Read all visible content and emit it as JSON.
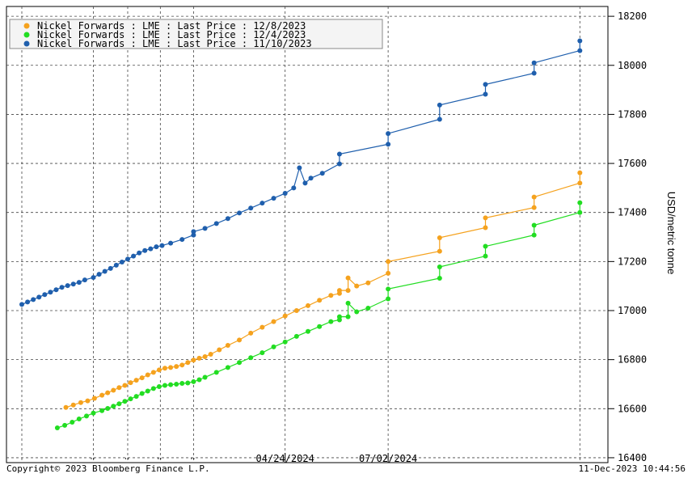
{
  "chart_data": {
    "type": "line",
    "ylabel": "USD/metric tonne",
    "ylim": [
      16380,
      18240
    ],
    "yticks": [
      16400,
      16600,
      16800,
      17000,
      17200,
      17400,
      17600,
      17800,
      18000,
      18200
    ],
    "ytick_labels": [
      "16400",
      "16600",
      "16800",
      "17000",
      "17200",
      "17400",
      "17600",
      "17800",
      "18000",
      "18200"
    ],
    "xlim": [
      0,
      100
    ],
    "x_tick_labels": [
      {
        "x": 46,
        "label": "04/24/2024"
      },
      {
        "x": 64,
        "label": "07/02/2024"
      }
    ],
    "x_dot_ticks": [
      12.5,
      18.5,
      24.2,
      30
    ],
    "x_vgrid": [
      0,
      12.5,
      18.5,
      24.2,
      30,
      46,
      64,
      97.5
    ],
    "grid": true,
    "legend_placement": "top-left",
    "copyright": "Copyright© 2023 Bloomberg Finance L.P.",
    "timestamp": "11-Dec-2023 10:44:56",
    "series": [
      {
        "name": "Nickel Forwards : LME : Last Price : 12/8/2023",
        "color": "#f5a21e",
        "x": [
          7.7,
          9,
          10.3,
          11.5,
          12.7,
          14,
          15,
          16,
          17,
          18,
          19,
          20,
          21,
          22,
          23,
          24,
          25,
          26,
          27,
          28,
          29,
          30,
          31,
          32,
          33,
          34.5,
          36,
          38,
          40,
          42,
          44,
          46,
          48,
          50,
          52,
          54,
          55.5,
          55.5,
          57,
          57,
          58.5,
          60.5,
          64,
          64,
          73,
          73,
          81,
          81,
          89.5,
          89.5,
          97.5,
          97.5
        ],
        "y": [
          16605,
          16615,
          16625,
          16632,
          16642,
          16655,
          16665,
          16675,
          16686,
          16695,
          16706,
          16716,
          16726,
          16738,
          16748,
          16758,
          16765,
          16768,
          16772,
          16778,
          16788,
          16798,
          16806,
          16812,
          16822,
          16840,
          16858,
          16880,
          16908,
          16932,
          16955,
          16978,
          17000,
          17020,
          17042,
          17062,
          17070,
          17082,
          17082,
          17133,
          17100,
          17113,
          17152,
          17200,
          17242,
          17297,
          17338,
          17378,
          17420,
          17463,
          17520,
          17562
        ]
      },
      {
        "name": "Nickel Forwards : LME : Last Price : 12/4/2023",
        "color": "#22dd22",
        "x": [
          6.2,
          7.5,
          8.8,
          10,
          11.3,
          12.5,
          14,
          15,
          16,
          17,
          18,
          19,
          20,
          21,
          22,
          23,
          24,
          25,
          26,
          27,
          28,
          29,
          30,
          31,
          32,
          34,
          36,
          38,
          40,
          42,
          44,
          46,
          48,
          50,
          52,
          54,
          55.5,
          55.5,
          57,
          57,
          58.5,
          60.5,
          64,
          64,
          73,
          73,
          81,
          81,
          89.5,
          89.5,
          97.5,
          97.5
        ],
        "y": [
          16522,
          16532,
          16545,
          16558,
          16570,
          16582,
          16592,
          16601,
          16610,
          16620,
          16630,
          16640,
          16650,
          16662,
          16672,
          16682,
          16690,
          16695,
          16698,
          16700,
          16703,
          16705,
          16710,
          16718,
          16728,
          16748,
          16768,
          16788,
          16808,
          16828,
          16852,
          16872,
          16895,
          16915,
          16935,
          16955,
          16962,
          16975,
          16975,
          17030,
          16995,
          17010,
          17048,
          17088,
          17132,
          17178,
          17222,
          17262,
          17308,
          17348,
          17400,
          17440
        ]
      },
      {
        "name": "Nickel Forwards : LME : Last Price : 11/10/2023",
        "color": "#1f5fad",
        "x": [
          0,
          1,
          2,
          3,
          4,
          5,
          6,
          7,
          8,
          9,
          10,
          11,
          12.5,
          13.5,
          14.5,
          15.5,
          16.5,
          17.5,
          18.5,
          19.5,
          20.5,
          21.5,
          22.5,
          23.5,
          24.5,
          26,
          28,
          30,
          30,
          32,
          34,
          36,
          38,
          40,
          42,
          44,
          46,
          47.5,
          48.5,
          49.5,
          50.5,
          52.5,
          55.5,
          55.5,
          64,
          64,
          73,
          73,
          81,
          81,
          89.5,
          89.5,
          97.5,
          97.5
        ],
        "y": [
          17025,
          17035,
          17045,
          17055,
          17065,
          17075,
          17085,
          17095,
          17102,
          17108,
          17115,
          17125,
          17135,
          17148,
          17160,
          17172,
          17185,
          17198,
          17210,
          17222,
          17235,
          17245,
          17252,
          17260,
          17265,
          17275,
          17290,
          17308,
          17322,
          17335,
          17355,
          17375,
          17398,
          17418,
          17438,
          17458,
          17478,
          17500,
          17582,
          17520,
          17540,
          17560,
          17598,
          17638,
          17678,
          17722,
          17780,
          17838,
          17882,
          17922,
          17968,
          18010,
          18060,
          18100
        ]
      }
    ]
  }
}
